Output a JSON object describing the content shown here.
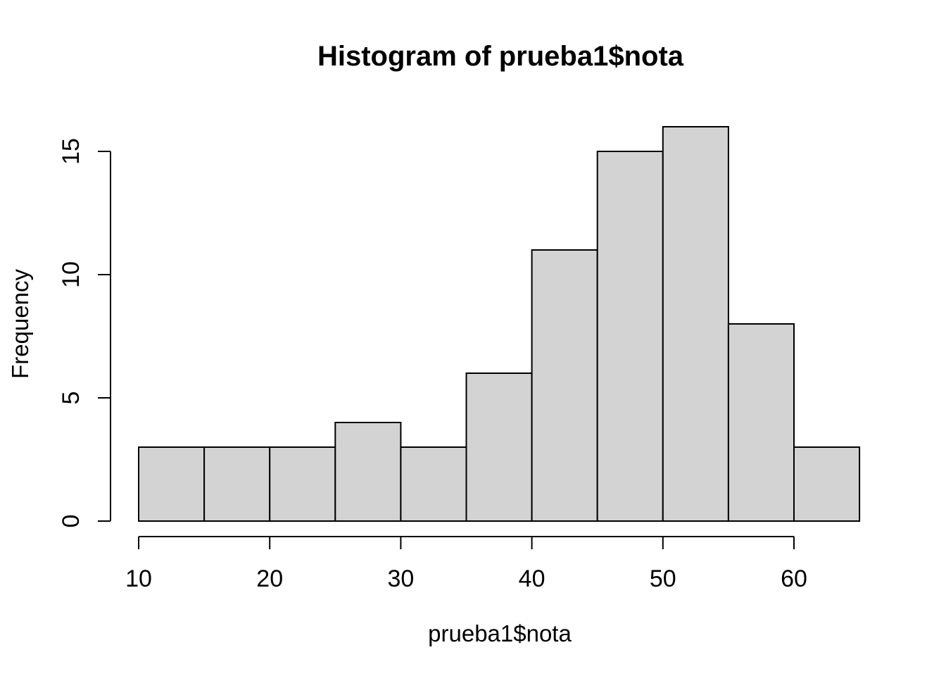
{
  "figure": {
    "title": "Histogram of prueba1$nota",
    "xlabel": "prueba1$nota",
    "ylabel": "Frequency",
    "background_color": "#ffffff",
    "text_color": "#000000"
  },
  "chart_data": {
    "type": "bar",
    "subtype": "histogram",
    "title": "Histogram of prueba1$nota",
    "xlabel": "prueba1$nota",
    "ylabel": "Frequency",
    "bin_edges": [
      10,
      15,
      20,
      25,
      30,
      35,
      40,
      45,
      50,
      55,
      60,
      65
    ],
    "counts": [
      3,
      3,
      3,
      4,
      3,
      6,
      11,
      15,
      16,
      8,
      3
    ],
    "x_ticks": [
      10,
      20,
      30,
      40,
      50,
      60
    ],
    "y_ticks": [
      0,
      5,
      10,
      15
    ],
    "xlim": [
      10,
      65
    ],
    "ylim": [
      0,
      15
    ],
    "grid": false,
    "legend": "none",
    "bar_fill": "#d3d3d3",
    "bar_stroke": "#000000",
    "axis_color": "#000000"
  }
}
